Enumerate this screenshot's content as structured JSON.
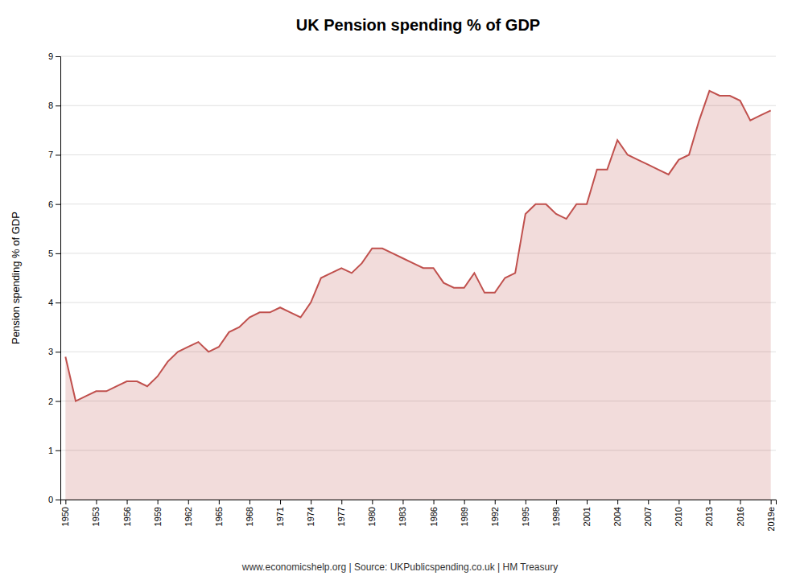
{
  "chart_data": {
    "type": "area",
    "title": "UK Pension spending % of GDP",
    "ylabel": "Pension spending % of GDP",
    "annotations": [
      "www.economicshelp.org | Source: UKPublicspending.co.uk | HM Treasury"
    ],
    "color": "#C0504D",
    "grid": true,
    "x": [
      1950,
      1951,
      1952,
      1953,
      1954,
      1955,
      1956,
      1957,
      1958,
      1959,
      1960,
      1961,
      1962,
      1963,
      1964,
      1965,
      1966,
      1967,
      1968,
      1969,
      1970,
      1971,
      1972,
      1973,
      1974,
      1975,
      1976,
      1977,
      1978,
      1979,
      1980,
      1981,
      1982,
      1983,
      1984,
      1985,
      1986,
      1987,
      1988,
      1989,
      1990,
      1991,
      1992,
      1993,
      1994,
      1995,
      1996,
      1997,
      1998,
      1999,
      2000,
      2001,
      2002,
      2003,
      2004,
      2005,
      2006,
      2007,
      2008,
      2009,
      2010,
      2011,
      2012,
      2013,
      2014,
      2015,
      2016,
      2017,
      2018,
      2019
    ],
    "values": [
      2.9,
      2.0,
      2.1,
      2.2,
      2.2,
      2.3,
      2.4,
      2.4,
      2.3,
      2.5,
      2.8,
      3.0,
      3.1,
      3.2,
      3.0,
      3.1,
      3.4,
      3.5,
      3.7,
      3.8,
      3.8,
      3.9,
      3.8,
      3.7,
      4.0,
      4.5,
      4.6,
      4.7,
      4.6,
      4.8,
      5.1,
      5.1,
      5.0,
      4.9,
      4.8,
      4.7,
      4.7,
      4.4,
      4.3,
      4.3,
      4.6,
      4.2,
      4.2,
      4.5,
      4.6,
      5.8,
      6.0,
      6.0,
      5.8,
      5.7,
      6.0,
      6.0,
      6.7,
      6.7,
      7.3,
      7.0,
      6.9,
      6.8,
      6.7,
      6.6,
      6.9,
      7.0,
      7.7,
      8.3,
      8.2,
      8.2,
      8.1,
      7.7,
      7.8,
      7.9
    ],
    "xlim": [
      1949.5,
      2019.5
    ],
    "xticks": [
      1950,
      1953,
      1956,
      1959,
      1962,
      1965,
      1968,
      1971,
      1974,
      1977,
      1980,
      1983,
      1986,
      1989,
      1992,
      1995,
      1998,
      2001,
      2004,
      2007,
      2010,
      2013,
      2016,
      {
        "value": 2019,
        "label": "2019e"
      }
    ],
    "ylim": [
      0,
      9
    ],
    "yticks": [
      0,
      1,
      2,
      3,
      4,
      5,
      6,
      7,
      8,
      9
    ]
  }
}
